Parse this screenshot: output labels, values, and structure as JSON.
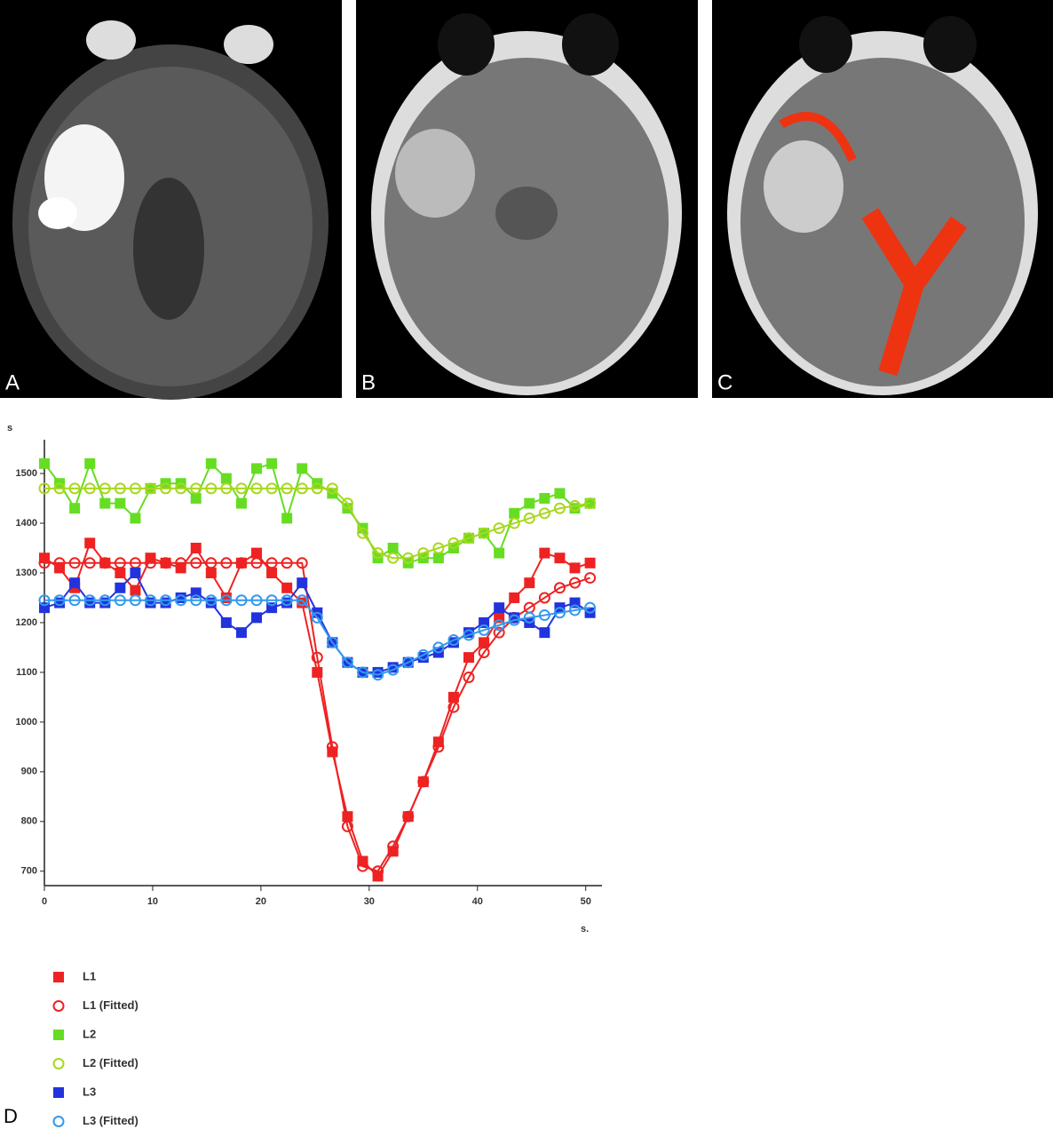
{
  "panels": [
    {
      "label": "A"
    },
    {
      "label": "B"
    },
    {
      "label": "C"
    }
  ],
  "chart_data": {
    "type": "line",
    "panel_label": "D",
    "xlabel": "s.",
    "ylabel": "s",
    "x": [
      0,
      1.4,
      2.8,
      4.2,
      5.6,
      7.0,
      8.4,
      9.8,
      11.2,
      12.6,
      14.0,
      15.4,
      16.8,
      18.2,
      19.6,
      21.0,
      22.4,
      23.8,
      25.2,
      26.6,
      28.0,
      29.4,
      30.8,
      32.2,
      33.6,
      35.0,
      36.4,
      37.8,
      39.2,
      40.6,
      42.0,
      43.4,
      44.8,
      46.2,
      47.6,
      49.0,
      50.4
    ],
    "xlim": [
      0,
      51.5
    ],
    "xticks": [
      0,
      10,
      20,
      30,
      40,
      50
    ],
    "ylim": [
      671,
      1568
    ],
    "yticks": [
      700,
      800,
      900,
      1000,
      1100,
      1200,
      1300,
      1400,
      1500
    ],
    "series": [
      {
        "name": "L1",
        "color": "#ee2222",
        "marker": "square",
        "values": [
          1330,
          1310,
          1270,
          1360,
          1320,
          1300,
          1265,
          1330,
          1320,
          1310,
          1350,
          1300,
          1250,
          1320,
          1340,
          1300,
          1270,
          1240,
          1100,
          940,
          810,
          720,
          690,
          740,
          810,
          880,
          960,
          1050,
          1130,
          1160,
          1210,
          1250,
          1280,
          1340,
          1330,
          1310,
          1320
        ]
      },
      {
        "name": "L1 (Fitted)",
        "color": "#ee2222",
        "marker": "circle",
        "values": [
          1320,
          1320,
          1320,
          1320,
          1320,
          1320,
          1320,
          1320,
          1320,
          1320,
          1320,
          1320,
          1320,
          1320,
          1320,
          1320,
          1320,
          1320,
          1130,
          950,
          790,
          710,
          700,
          750,
          810,
          880,
          950,
          1030,
          1090,
          1140,
          1180,
          1210,
          1230,
          1250,
          1270,
          1280,
          1290
        ]
      },
      {
        "name": "L2",
        "color": "#66dd22",
        "marker": "square",
        "values": [
          1520,
          1480,
          1430,
          1520,
          1440,
          1440,
          1410,
          1470,
          1480,
          1480,
          1450,
          1520,
          1490,
          1440,
          1510,
          1520,
          1410,
          1510,
          1480,
          1460,
          1430,
          1390,
          1330,
          1350,
          1320,
          1330,
          1330,
          1350,
          1370,
          1380,
          1340,
          1420,
          1440,
          1450,
          1460,
          1430,
          1440
        ]
      },
      {
        "name": "L2 (Fitted)",
        "color": "#a8d81e",
        "marker": "circle",
        "values": [
          1470,
          1470,
          1470,
          1470,
          1470,
          1470,
          1470,
          1470,
          1470,
          1470,
          1470,
          1470,
          1470,
          1470,
          1470,
          1470,
          1470,
          1470,
          1470,
          1470,
          1440,
          1380,
          1340,
          1330,
          1330,
          1340,
          1350,
          1360,
          1370,
          1380,
          1390,
          1400,
          1410,
          1420,
          1430,
          1435,
          1440
        ]
      },
      {
        "name": "L3",
        "color": "#2233dd",
        "marker": "square",
        "values": [
          1230,
          1240,
          1280,
          1240,
          1240,
          1270,
          1300,
          1240,
          1240,
          1250,
          1260,
          1240,
          1200,
          1180,
          1210,
          1230,
          1240,
          1280,
          1220,
          1160,
          1120,
          1100,
          1100,
          1110,
          1120,
          1130,
          1140,
          1160,
          1180,
          1200,
          1230,
          1210,
          1200,
          1180,
          1230,
          1240,
          1220
        ]
      },
      {
        "name": "L3 (Fitted)",
        "color": "#3399ee",
        "marker": "circle",
        "values": [
          1245,
          1245,
          1245,
          1245,
          1245,
          1245,
          1245,
          1245,
          1245,
          1245,
          1245,
          1245,
          1245,
          1245,
          1245,
          1245,
          1245,
          1245,
          1210,
          1160,
          1120,
          1100,
          1095,
          1105,
          1120,
          1135,
          1150,
          1165,
          1175,
          1185,
          1195,
          1205,
          1210,
          1215,
          1220,
          1225,
          1230
        ]
      }
    ]
  }
}
